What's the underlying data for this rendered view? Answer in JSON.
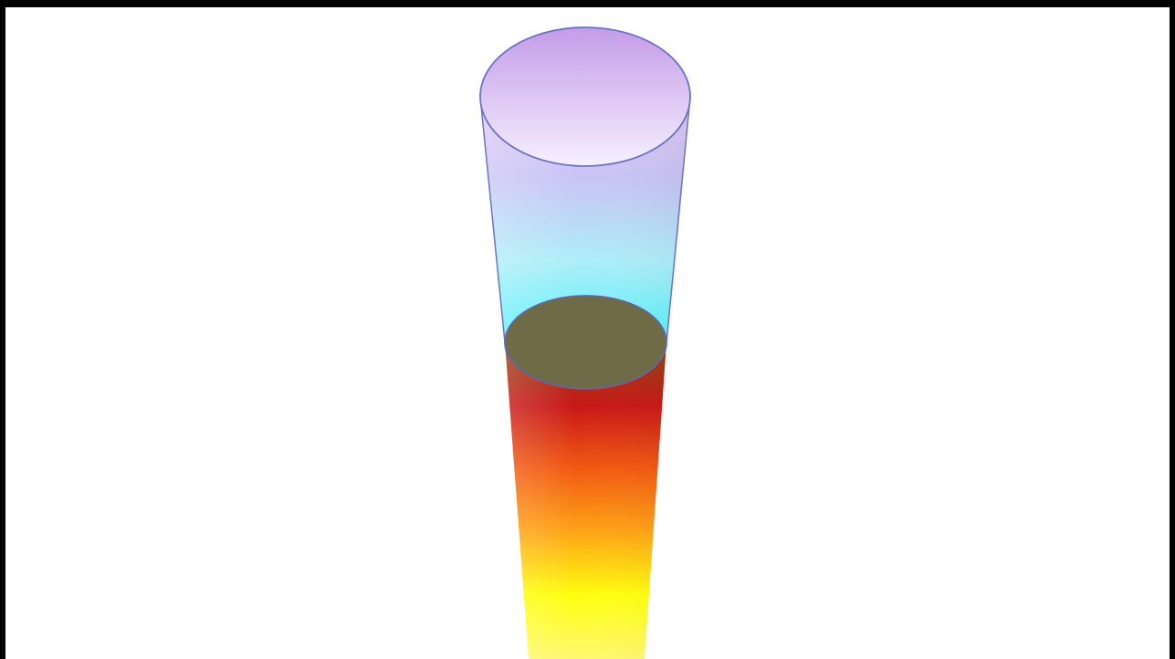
{
  "figure": {
    "subject": "tapered-cylinder-with-internal-boundary-disc",
    "colors": {
      "frame_border": "#000000",
      "background": "#ffffff",
      "upper_gradient": [
        "#e3c8f5",
        "#c9c4f5",
        "#aeeef8",
        "#55f2fa"
      ],
      "lower_gradient": [
        "#8a4a10",
        "#c81818",
        "#f25a12",
        "#ffa416",
        "#ffff10",
        "#fff870"
      ],
      "top_cap": [
        "#c39ce8",
        "#f6f0ff"
      ],
      "boundary_disc": "#6e6b46",
      "outline": "#6a74c0"
    }
  }
}
